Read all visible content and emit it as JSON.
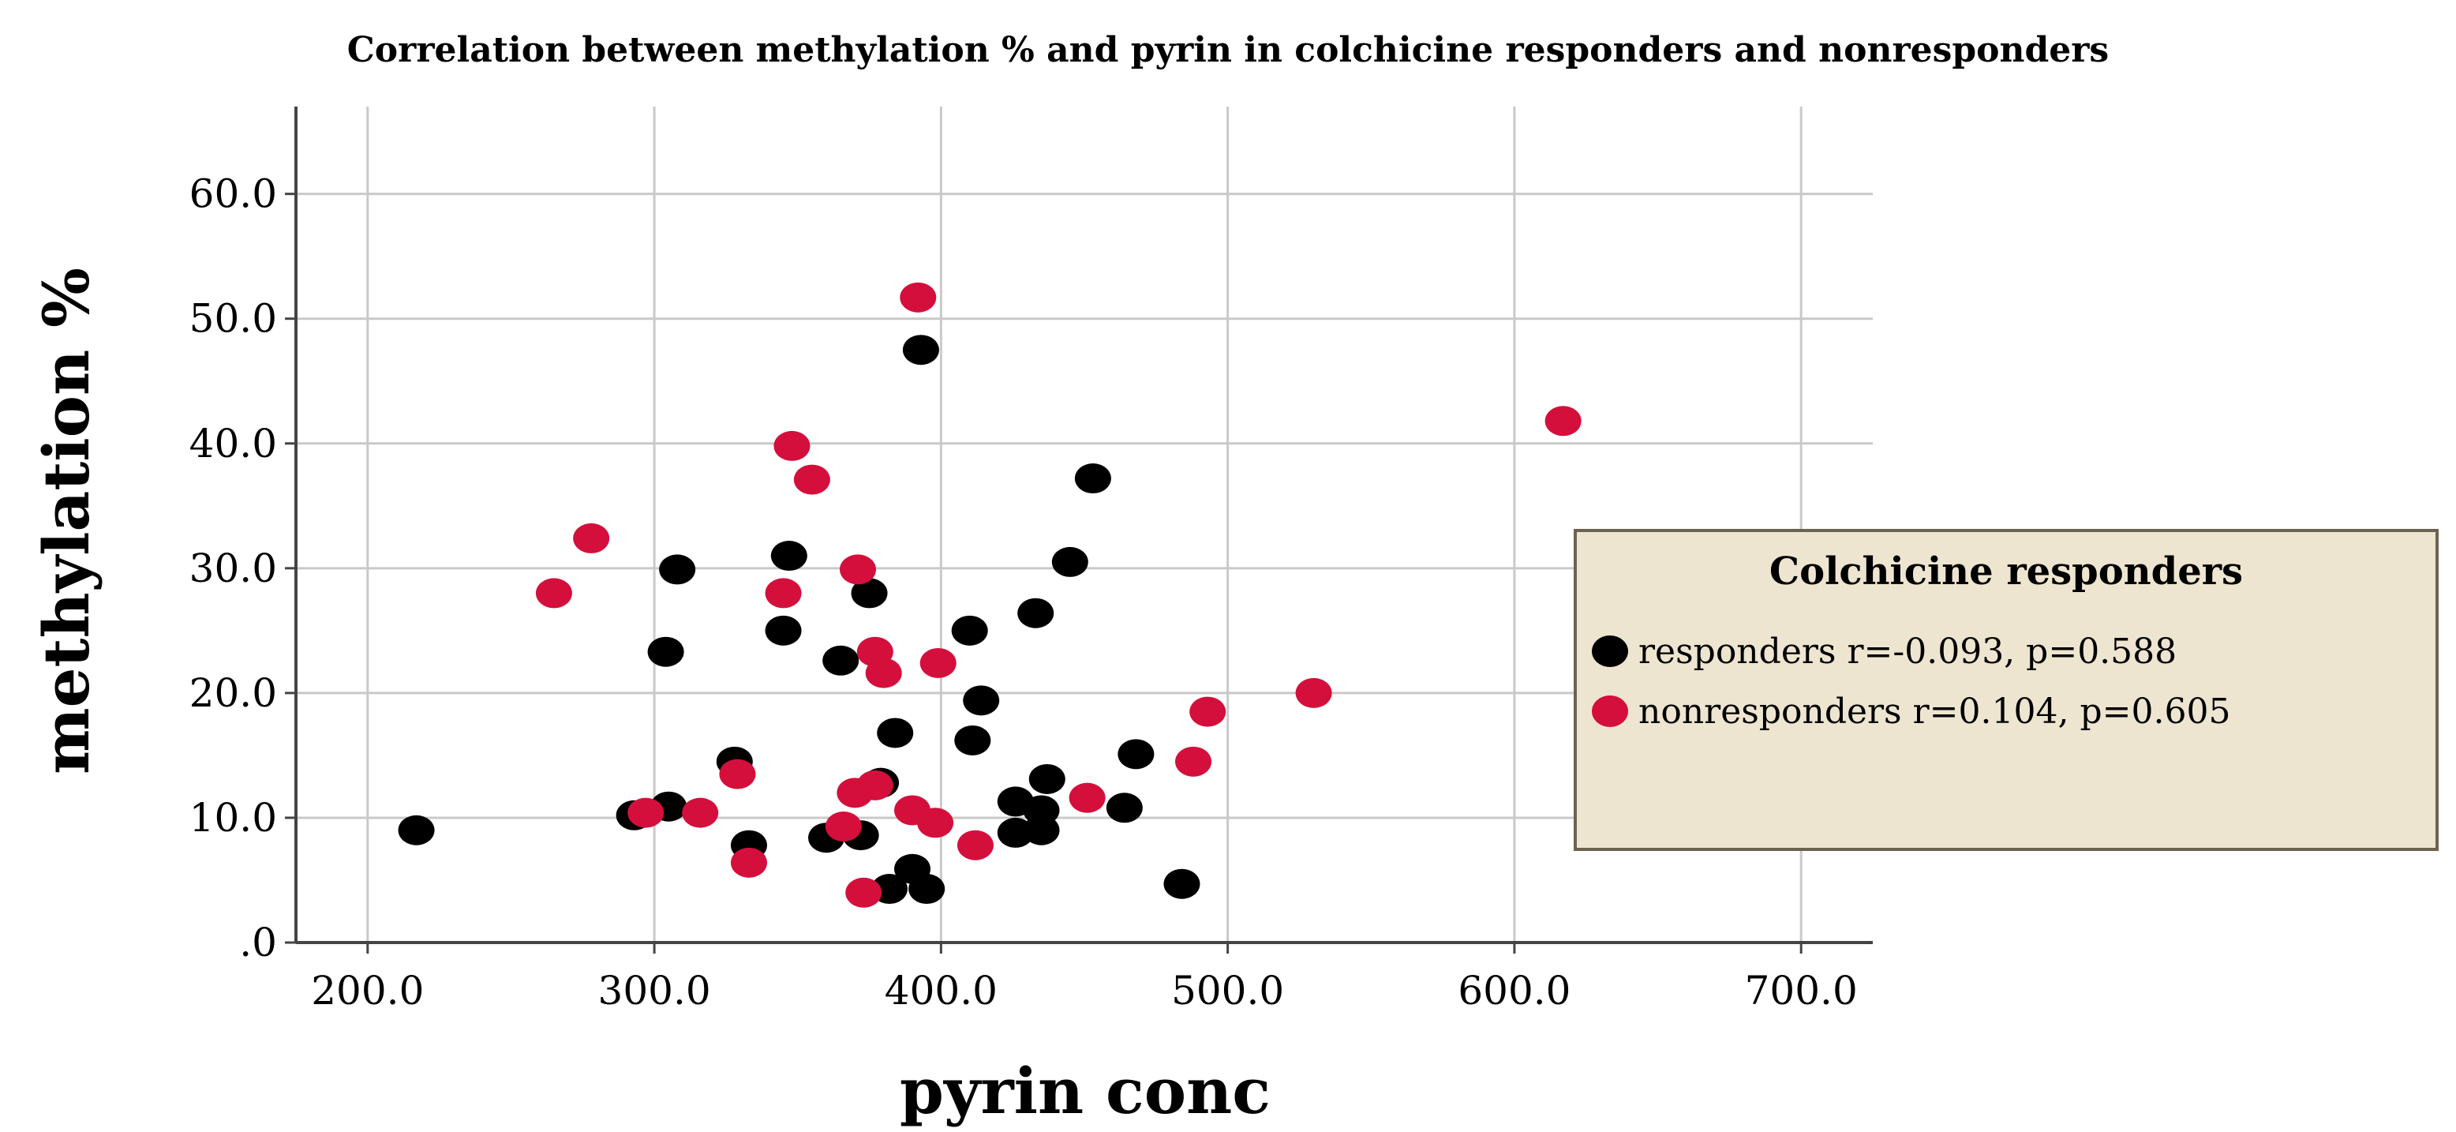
{
  "chart_data": {
    "type": "scatter",
    "title": "Correlation between methylation % and pyrin in colchicine responders and nonresponders",
    "xlabel": "pyrin conc",
    "ylabel": "methylation %",
    "xlim": [
      175,
      725
    ],
    "ylim": [
      0,
      67
    ],
    "x_ticks": [
      200,
      300,
      400,
      500,
      600,
      700
    ],
    "x_tick_labels": [
      "200.0",
      "300.0",
      "400.0",
      "500.0",
      "600.0",
      "700.0"
    ],
    "y_ticks": [
      0,
      10,
      20,
      30,
      40,
      50,
      60
    ],
    "y_tick_labels": [
      ".0",
      "10.0",
      "20.0",
      "30.0",
      "40.0",
      "50.0",
      "60.0"
    ],
    "grid": true,
    "legend": {
      "title": "Colchicine responders",
      "placement": "right"
    },
    "series": [
      {
        "name": "responders r=-0.093, p=0.588",
        "color": "#000000",
        "points": [
          [
            217,
            9.0
          ],
          [
            293,
            10.2
          ],
          [
            305,
            10.9
          ],
          [
            304,
            23.3
          ],
          [
            308,
            29.9
          ],
          [
            328,
            14.5
          ],
          [
            333,
            7.8
          ],
          [
            345,
            25.0
          ],
          [
            347,
            31.0
          ],
          [
            360,
            8.4
          ],
          [
            365,
            22.6
          ],
          [
            372,
            8.6
          ],
          [
            375,
            28.0
          ],
          [
            379,
            12.8
          ],
          [
            382,
            4.3
          ],
          [
            384,
            16.8
          ],
          [
            390,
            5.9
          ],
          [
            393,
            47.5
          ],
          [
            395,
            4.3
          ],
          [
            410,
            25.0
          ],
          [
            411,
            16.2
          ],
          [
            414,
            19.4
          ],
          [
            426,
            11.3
          ],
          [
            426,
            8.8
          ],
          [
            433,
            26.4
          ],
          [
            435,
            10.6
          ],
          [
            435,
            9.0
          ],
          [
            437,
            13.1
          ],
          [
            445,
            30.5
          ],
          [
            453,
            37.2
          ],
          [
            464,
            10.8
          ],
          [
            468,
            15.1
          ],
          [
            484,
            4.7
          ]
        ]
      },
      {
        "name": "nonresponders r=0.104, p=0.605",
        "color": "#D40F3C",
        "points": [
          [
            265,
            28.0
          ],
          [
            278,
            32.4
          ],
          [
            297,
            10.4
          ],
          [
            316,
            10.4
          ],
          [
            329,
            13.5
          ],
          [
            333,
            6.4
          ],
          [
            345,
            28.0
          ],
          [
            348,
            39.8
          ],
          [
            355,
            37.1
          ],
          [
            366,
            9.3
          ],
          [
            370,
            12.0
          ],
          [
            371,
            29.9
          ],
          [
            373,
            4.0
          ],
          [
            377,
            23.3
          ],
          [
            377,
            12.6
          ],
          [
            380,
            21.6
          ],
          [
            390,
            10.6
          ],
          [
            392,
            51.7
          ],
          [
            398,
            9.6
          ],
          [
            399,
            22.4
          ],
          [
            412,
            7.8
          ],
          [
            451,
            11.6
          ],
          [
            488,
            14.5
          ],
          [
            493,
            18.5
          ],
          [
            530,
            20.0
          ],
          [
            617,
            41.8
          ]
        ]
      }
    ]
  }
}
